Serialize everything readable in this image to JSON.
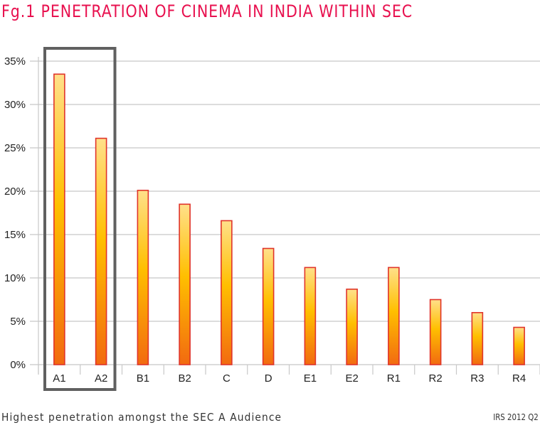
{
  "title": "Fg.1 PENETRATION OF CINEMA IN INDIA WITHIN SEC",
  "footer": {
    "caption": "Highest penetration amongst the SEC A Audience",
    "source": "IRS 2012 Q2"
  },
  "colors": {
    "title": "#e8114f",
    "bar_top": "#ffe08a",
    "bar_mid": "#ffbf00",
    "bar_bottom": "#f26a10",
    "bar_border": "#e0342a",
    "highlight_box": "#606060",
    "grid": "#c8c8c8"
  },
  "chart_data": {
    "type": "bar",
    "title": "Fg.1 PENETRATION OF CINEMA IN INDIA WITHIN SEC",
    "xlabel": "",
    "ylabel": "",
    "categories": [
      "A1",
      "A2",
      "B1",
      "B2",
      "C",
      "D",
      "E1",
      "E2",
      "R1",
      "R2",
      "R3",
      "R4"
    ],
    "values": [
      33.5,
      26.1,
      20.1,
      18.5,
      16.6,
      13.4,
      11.2,
      8.7,
      11.2,
      7.5,
      6.0,
      4.3
    ],
    "unit": "%",
    "ylim": [
      0,
      35
    ],
    "yticks": [
      0,
      5,
      10,
      15,
      20,
      25,
      30,
      35
    ],
    "ytick_labels": [
      "0%",
      "5%",
      "10%",
      "15%",
      "20%",
      "25%",
      "30%",
      "35%"
    ],
    "grid": true,
    "legend": null,
    "highlight": {
      "categories": [
        "A1",
        "A2"
      ],
      "style": "outlined box"
    }
  }
}
